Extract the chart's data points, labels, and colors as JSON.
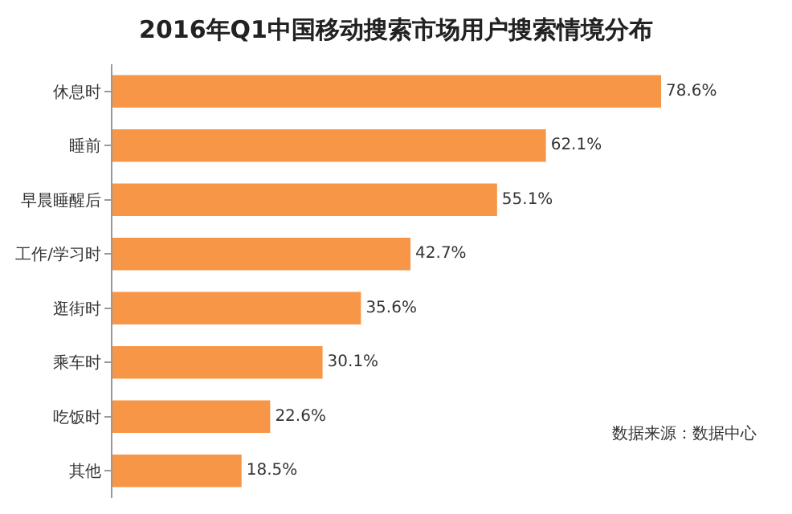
{
  "chart_data": {
    "type": "bar",
    "orientation": "horizontal",
    "title": "2016年Q1中国移动搜索市场用户搜索情境分布",
    "categories": [
      "休息时",
      "睡前",
      "早晨睡醒后",
      "工作/学习时",
      "逛街时",
      "乘车时",
      "吃饭时",
      "其他"
    ],
    "values": [
      78.6,
      62.1,
      55.1,
      42.7,
      35.6,
      30.1,
      22.6,
      18.5
    ],
    "value_labels": [
      "78.6%",
      "62.1%",
      "55.1%",
      "42.7%",
      "35.6%",
      "30.1%",
      "22.6%",
      "18.5%"
    ],
    "color": "#f79646",
    "annotations": [
      "数据来源：数据中心"
    ]
  }
}
